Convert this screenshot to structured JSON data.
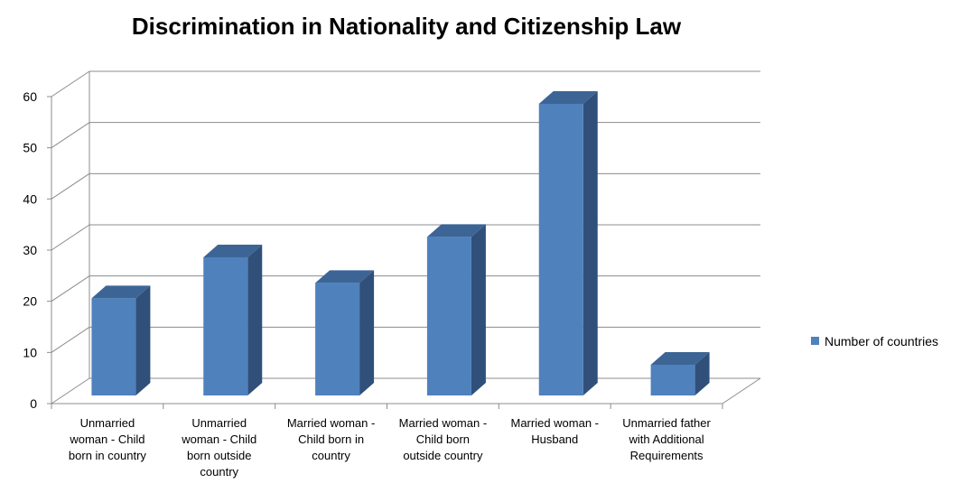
{
  "chart_data": {
    "type": "bar",
    "title": "Discrimination in Nationality and Citizenship Law",
    "categories": [
      [
        "Unmarried",
        "woman - Child",
        "born in country"
      ],
      [
        "Unmarried",
        "woman - Child",
        "born outside",
        "country"
      ],
      [
        "Married woman -",
        "Child born in",
        "country"
      ],
      [
        "Married woman -",
        "Child born",
        "outside country"
      ],
      [
        "Married woman -",
        "Husband"
      ],
      [
        "Unmarried father",
        "with Additional",
        "Requirements"
      ]
    ],
    "series": [
      {
        "name": "Number of countries",
        "values": [
          19,
          27,
          22,
          31,
          57,
          6
        ]
      }
    ],
    "yticks": [
      0,
      10,
      20,
      30,
      40,
      50,
      60
    ],
    "ylim": [
      0,
      60
    ],
    "xlabel": "",
    "ylabel": "",
    "grid": true,
    "legend_position": "right",
    "colors": {
      "bar_front": "#4F81BD",
      "bar_side": "#30507A",
      "bar_top": "#3C6596",
      "grid": "#8C8C8C"
    }
  }
}
